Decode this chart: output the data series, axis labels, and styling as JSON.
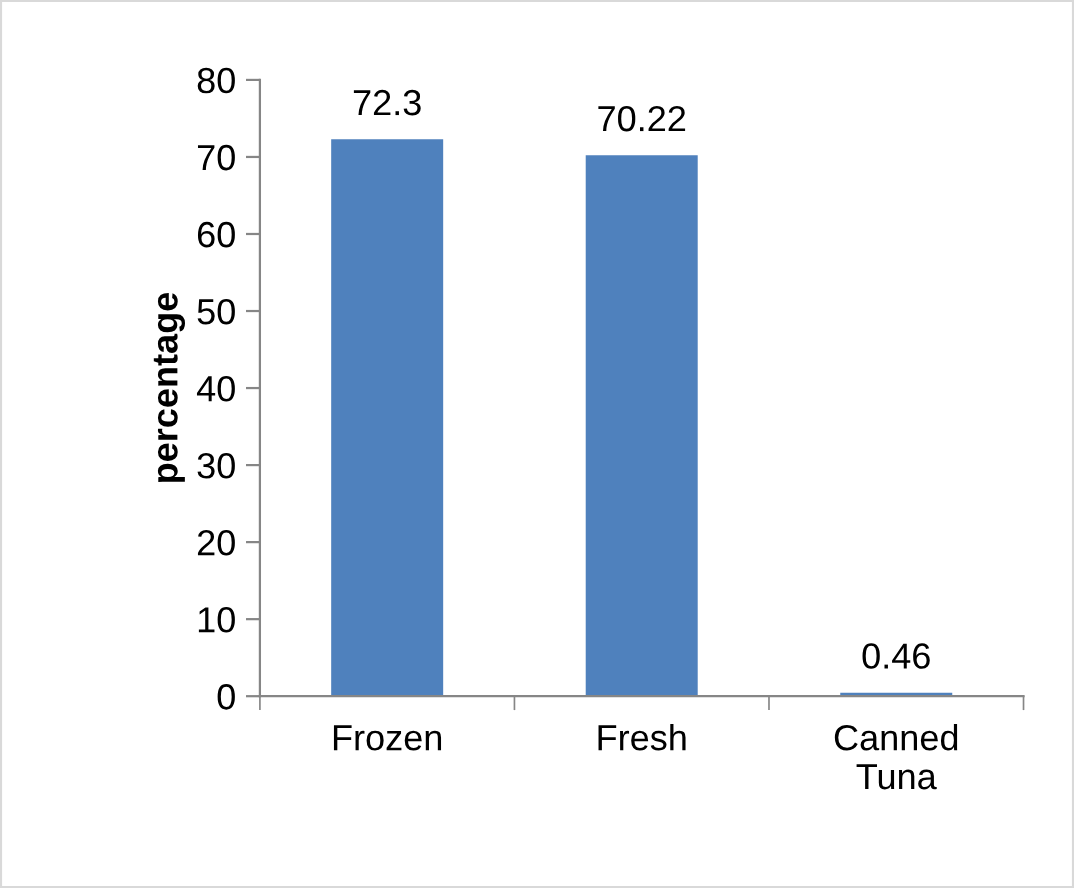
{
  "chart_data": {
    "type": "bar",
    "ylabel": "percentage",
    "categories": [
      "Frozen",
      "Fresh",
      "Canned\nTuna"
    ],
    "values": [
      72.3,
      70.22,
      0.46
    ],
    "color": "#4f81bd",
    "ylim": [
      0,
      80
    ],
    "yticks": [
      0,
      10,
      20,
      30,
      40,
      50,
      60,
      70,
      80
    ],
    "data_labels": true,
    "grid": false,
    "legend": false
  }
}
